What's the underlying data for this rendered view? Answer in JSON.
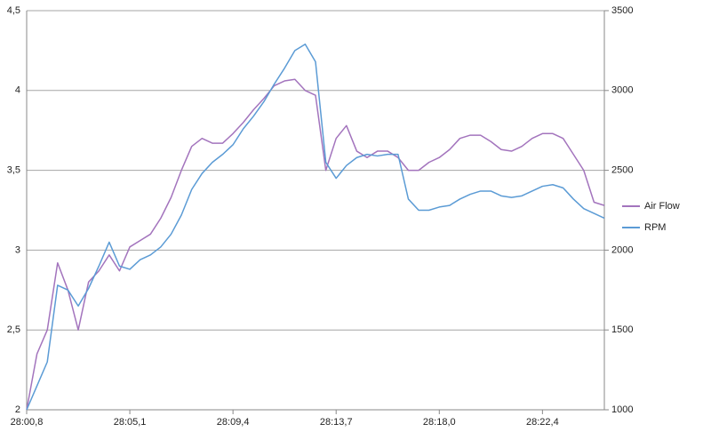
{
  "chart_data": {
    "type": "line",
    "categories": [
      "28:00,8",
      null,
      null,
      null,
      null,
      null,
      null,
      null,
      null,
      null,
      "28:05,1",
      null,
      null,
      null,
      null,
      null,
      null,
      null,
      null,
      null,
      "28:09,4",
      null,
      null,
      null,
      null,
      null,
      null,
      null,
      null,
      null,
      "28:13,7",
      null,
      null,
      null,
      null,
      null,
      null,
      null,
      null,
      null,
      "28:18,0",
      null,
      null,
      null,
      null,
      null,
      null,
      null,
      null,
      null,
      "28:22,4",
      null,
      null,
      null,
      null,
      null,
      null
    ],
    "series": [
      {
        "name": "Air Flow",
        "color": "#a374bd",
        "values": [
          2.0,
          2.35,
          2.5,
          2.92,
          2.75,
          2.5,
          2.8,
          2.87,
          2.97,
          2.87,
          3.02,
          3.06,
          3.1,
          3.2,
          3.33,
          3.5,
          3.65,
          3.7,
          3.67,
          3.67,
          3.73,
          3.8,
          3.88,
          3.95,
          4.03,
          4.06,
          4.07,
          4.0,
          3.97,
          3.5,
          3.7,
          3.78,
          3.62,
          3.58,
          3.62,
          3.62,
          3.58,
          3.5,
          3.5,
          3.55,
          3.58,
          3.63,
          3.7,
          3.72,
          3.72,
          3.68,
          3.63,
          3.62,
          3.65,
          3.7,
          3.73,
          3.73,
          3.7,
          3.6,
          3.5,
          3.3,
          3.28
        ]
      },
      {
        "name": "RPM",
        "color": "#5b9bd5",
        "axis": "y2",
        "values": [
          1000,
          1150,
          1300,
          1780,
          1750,
          1650,
          1760,
          1900,
          2050,
          1900,
          1880,
          1940,
          1970,
          2020,
          2100,
          2220,
          2380,
          2480,
          2550,
          2600,
          2660,
          2760,
          2840,
          2930,
          3040,
          3140,
          3250,
          3290,
          3180,
          2550,
          2450,
          2530,
          2580,
          2600,
          2590,
          2600,
          2600,
          2320,
          2250,
          2250,
          2270,
          2280,
          2320,
          2350,
          2370,
          2370,
          2340,
          2330,
          2340,
          2370,
          2400,
          2410,
          2390,
          2320,
          2260,
          2230,
          2200
        ]
      }
    ],
    "ylim": [
      2,
      4.5
    ],
    "yticks": [
      2,
      {
        "value": 2.5,
        "label": "2,5"
      },
      3,
      {
        "value": 3.5,
        "label": "3,5"
      },
      4,
      {
        "value": 4.5,
        "label": "4,5"
      }
    ],
    "y2lim": [
      1000,
      3500
    ],
    "y2ticks": [
      1000,
      1500,
      2000,
      2500,
      3000,
      3500
    ],
    "grid": true,
    "legend": "right"
  }
}
